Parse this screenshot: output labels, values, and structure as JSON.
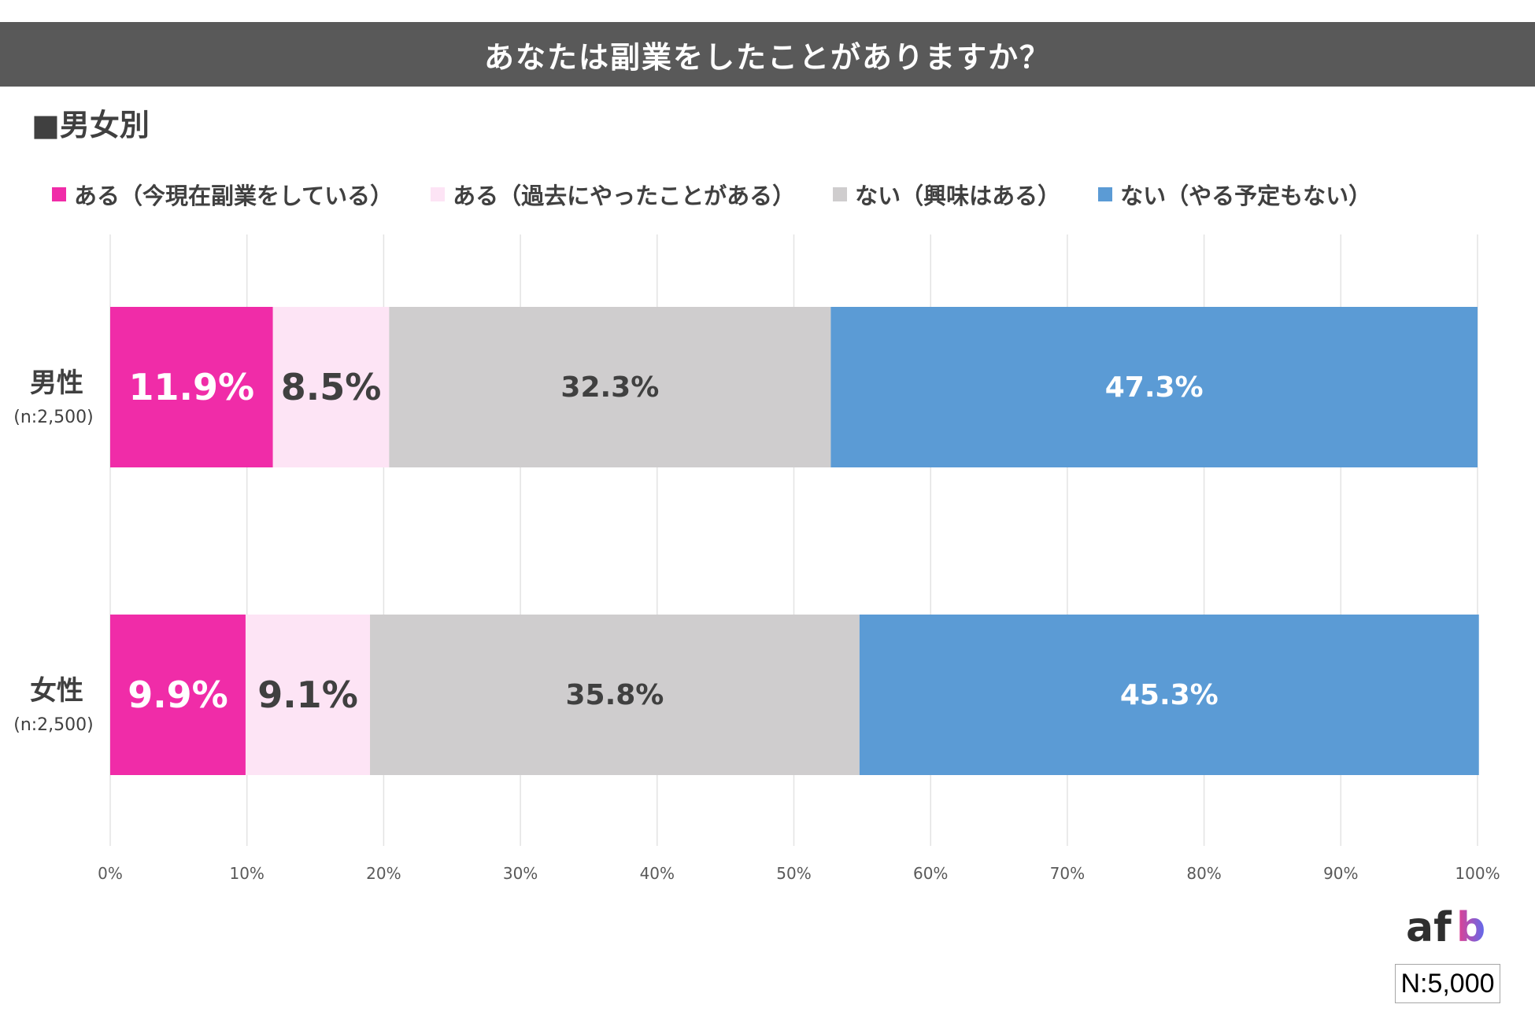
{
  "title": "あなたは副業をしたことがありますか？",
  "subtitle": "■男女別",
  "total_n": "N:5,000",
  "logo_text": "afb",
  "colors": {
    "current": "#f02ca8",
    "past": "#fde4f5",
    "interested": "#cfcdce",
    "not_planned": "#5b9bd5",
    "title_bg": "#595959"
  },
  "chart_data": {
    "type": "bar",
    "orientation": "horizontal",
    "stacked": true,
    "categories": [
      "男性",
      "女性"
    ],
    "category_notes": [
      "(n:2,500)",
      "(n:2,500)"
    ],
    "series": [
      {
        "name": "ある（今現在副業をしている）",
        "values": [
          11.9,
          9.9
        ],
        "color": "#f02ca8",
        "label_color": "#ffffff"
      },
      {
        "name": "ある（過去にやったことがある）",
        "values": [
          8.5,
          9.1
        ],
        "color": "#fde4f5",
        "label_color": "#404040"
      },
      {
        "name": "ない（興味はある）",
        "values": [
          32.3,
          35.8
        ],
        "color": "#cfcdce",
        "label_color": "#404040"
      },
      {
        "name": "ない（やる予定もない）",
        "values": [
          47.3,
          45.3
        ],
        "color": "#5b9bd5",
        "label_color": "#ffffff"
      }
    ],
    "data_labels": [
      [
        "11.9%",
        "8.5%",
        "32.3%",
        "47.3%"
      ],
      [
        "9.9%",
        "9.1%",
        "35.8%",
        "45.3%"
      ]
    ],
    "x_ticks": [
      "0%",
      "10%",
      "20%",
      "30%",
      "40%",
      "50%",
      "60%",
      "70%",
      "80%",
      "90%",
      "100%"
    ],
    "xlim": [
      0,
      100
    ],
    "grid": true,
    "legend_position": "top"
  }
}
